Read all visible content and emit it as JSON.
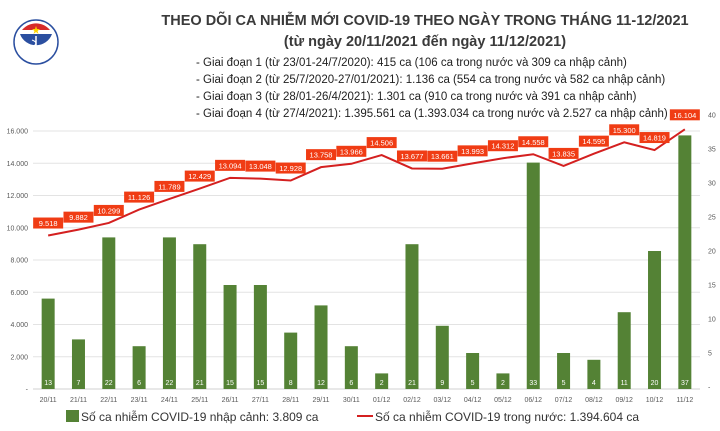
{
  "logo": {
    "text": "BỘ Y TẾ",
    "caption": "MINISTRY OF HEALTH"
  },
  "chart_data": {
    "type": "bar+line",
    "title": "THEO DÕI CA NHIỄM MỚI COVID-19 THEO NGÀY TRONG THÁNG 11-12/2021",
    "subtitle": "(từ ngày 20/11/2021 đến ngày 11/12/2021)",
    "notes": [
      "- Giai đoạn 1 (từ 23/01-24/7/2020): 415 ca (106 ca trong nước và 309 ca nhập cảnh)",
      "- Giai đoạn 2 (từ 25/7/2020-27/01/2021): 1.136 ca (554 ca trong nước và 582 ca nhập cảnh)",
      "- Giai đoạn 3 (từ 28/01-26/4/2021): 1.301 ca (910 ca trong nước và 391 ca nhập cảnh)",
      "- Giai đoạn 4 (từ 27/4/2021): 1.395.561 ca (1.393.034 ca trong nước và 2.527 ca nhập cảnh)"
    ],
    "categories": [
      "20/11",
      "21/11",
      "22/11",
      "23/11",
      "24/11",
      "25/11",
      "26/11",
      "27/11",
      "28/11",
      "29/11",
      "30/11",
      "01/12",
      "02/12",
      "03/12",
      "04/12",
      "05/12",
      "06/12",
      "07/12",
      "08/12",
      "09/12",
      "10/12",
      "11/12"
    ],
    "series": [
      {
        "name": "Số ca nhiễm COVID-19 nhập cảnh: 3.809 ca",
        "type": "bar",
        "axis": "right",
        "color": "#548235",
        "values": [
          13,
          7,
          22,
          6,
          22,
          21,
          15,
          15,
          8,
          12,
          6,
          2,
          21,
          9,
          5,
          2,
          33,
          5,
          4,
          11,
          20,
          37
        ],
        "labels": [
          "13",
          "7",
          "22",
          "6",
          "22",
          "21",
          "15",
          "15",
          "8",
          "12",
          "6",
          "2",
          "21",
          "9",
          "5",
          "2",
          "33",
          "5",
          "4",
          "11",
          "20",
          "37"
        ]
      },
      {
        "name": "Số ca nhiễm COVID-19 trong nước: 1.394.604 ca",
        "type": "line",
        "axis": "left",
        "color": "#d42020",
        "label_bg": "#f03c14",
        "values": [
          9518,
          9882,
          10299,
          11126,
          11789,
          12429,
          13094,
          13048,
          12928,
          13758,
          13966,
          14506,
          13677,
          13661,
          13993,
          14312,
          14558,
          13835,
          14595,
          15300,
          14819,
          16104
        ],
        "labels": [
          "9.518",
          "9.882",
          "10.299",
          "11.126",
          "11.789",
          "12.429",
          "13.094",
          "13.048",
          "12.928",
          "13.758",
          "13.966",
          "14.506",
          "13.677",
          "13.661",
          "13.993",
          "14.312",
          "14.558",
          "13.835",
          "14.595",
          "15.300",
          "14.819",
          "16.104"
        ]
      }
    ],
    "left_axis": {
      "ylim": [
        0,
        16000
      ],
      "ticks": [
        "-",
        "2.000",
        "4.000",
        "6.000",
        "8.000",
        "10.000",
        "12.000",
        "14.000",
        "16.000"
      ]
    },
    "right_axis": {
      "ylim": [
        0,
        40
      ],
      "ticks": [
        "-",
        "5",
        "10",
        "15",
        "20",
        "25",
        "30",
        "35",
        "40"
      ]
    },
    "grid": true,
    "legend_position": "bottom"
  }
}
